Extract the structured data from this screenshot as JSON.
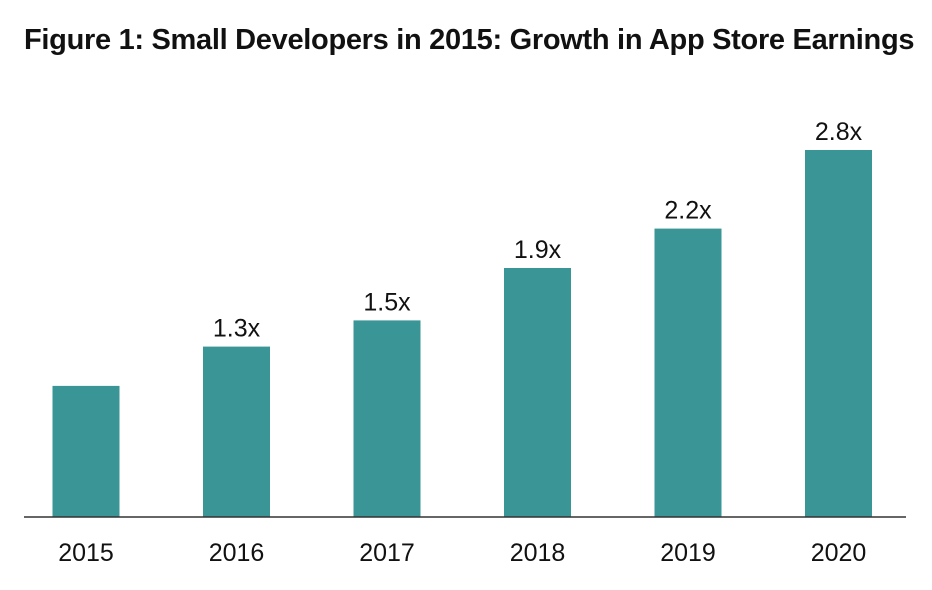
{
  "chart_data": {
    "type": "bar",
    "title": "Figure 1: Small Developers in 2015: Growth in App Store Earnings",
    "categories": [
      "2015",
      "2016",
      "2017",
      "2018",
      "2019",
      "2020"
    ],
    "values": [
      1.0,
      1.3,
      1.5,
      1.9,
      2.2,
      2.8
    ],
    "data_labels": [
      "",
      "1.3x",
      "1.5x",
      "1.9x",
      "2.2x",
      "2.8x"
    ],
    "xlabel": "",
    "ylabel": "",
    "ylim": [
      0,
      3.2
    ],
    "grid": false,
    "legend": "none",
    "bar_color": "#3a9596",
    "axis_color": "#333333"
  }
}
